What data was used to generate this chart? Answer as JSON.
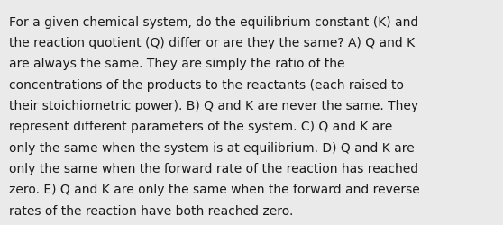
{
  "lines": [
    "For a given chemical system, do the equilibrium constant (K) and",
    "the reaction quotient (Q) differ or are they the same? A) Q and K",
    "are always the same. They are simply the ratio of the",
    "concentrations of the products to the reactants (each raised to",
    "their stoichiometric power). B) Q and K are never the same. They",
    "represent different parameters of the system. C) Q and K are",
    "only the same when the system is at equilibrium. D) Q and K are",
    "only the same when the forward rate of the reaction has reached",
    "zero. E) Q and K are only the same when the forward and reverse",
    "rates of the reaction have both reached zero."
  ],
  "background_color": "#eaeaea",
  "text_color": "#1a1a1a",
  "font_size": 10.0,
  "font_family": "DejaVu Sans"
}
